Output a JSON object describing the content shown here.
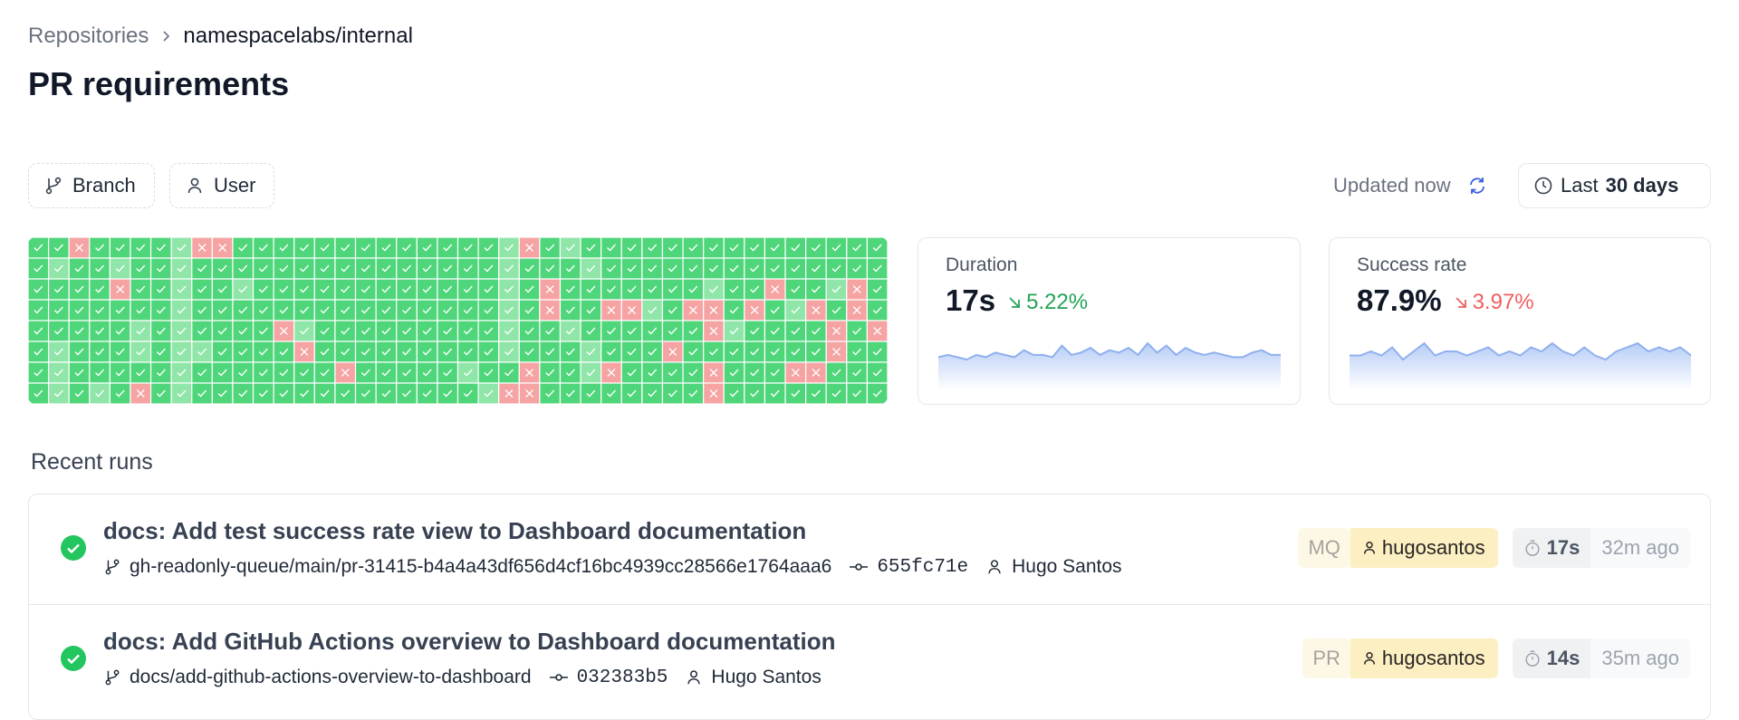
{
  "breadcrumb": {
    "parent": "Repositories",
    "current": "namespacelabs/internal"
  },
  "title": "PR requirements",
  "filters": [
    "Branch",
    "User"
  ],
  "status": "Updated now",
  "range": {
    "prefix": "Last",
    "value": "30 days"
  },
  "heatmap": {
    "colors": {
      "g": "#4fd67b",
      "l": "#8fe6a8",
      "r": "#f6a3a3"
    },
    "rows": [
      "ggrgggglrrggggggggggggglrglggggggggggggggg",
      "glgglgglggggggggggggggglgggLgggggggggggggg",
      "ggggrgglggLggggggggggggLgrggggggglggrgglrg",
      "ggggggglggggggggggggggglgrggrrlgrrgrglrgrg",
      "ggggglglggggrlgggggggggLgglggggggrlggggrgr",
      "glggglgllggggrggggggggglgggLgggrgggggggrgg",
      "glggggglgggggggrgggggLggrgglrggggrgggrrggg",
      "glglgrglggggggggggggggLrrggggggggrgggggggg"
    ]
  },
  "stats": [
    {
      "label": "Duration",
      "value": "17s",
      "change": "5.22%",
      "color": "#22a355",
      "sparkline": [
        20,
        21,
        20,
        19,
        21,
        20,
        22,
        21,
        20,
        23,
        21,
        21,
        20,
        25,
        21,
        22,
        24,
        21,
        23,
        22,
        24,
        21,
        26,
        22,
        25,
        21,
        24,
        22,
        21,
        22,
        21,
        20,
        20,
        22,
        23,
        21,
        21
      ]
    },
    {
      "label": "Success rate",
      "value": "87.9%",
      "change": "3.97%",
      "color": "#ef5f5f",
      "sparkline": [
        20,
        20,
        21,
        20,
        22,
        19,
        21,
        23,
        20,
        21,
        21,
        20,
        21,
        22,
        20,
        21,
        20,
        22,
        21,
        23,
        21,
        20,
        22,
        20,
        19,
        21,
        22,
        23,
        21,
        22,
        21,
        22,
        20
      ]
    }
  ],
  "recent_runs": {
    "title": "Recent runs",
    "runs": [
      {
        "title": "docs: Add test success rate view to Dashboard documentation",
        "branch": "gh-readonly-queue/main/pr-31415-b4a4a43df656d4cf16bc4939cc28566e1764aaa6",
        "commit": "655fc71e",
        "author": "Hugo Santos",
        "trigger": "MQ",
        "user": "hugosantos",
        "duration": "17s",
        "ago": "32m ago"
      },
      {
        "title": "docs: Add GitHub Actions overview to Dashboard documentation",
        "branch": "docs/add-github-actions-overview-to-dashboard",
        "commit": "032383b5",
        "author": "Hugo Santos",
        "trigger": "PR",
        "user": "hugosantos",
        "duration": "14s",
        "ago": "35m ago"
      }
    ]
  }
}
